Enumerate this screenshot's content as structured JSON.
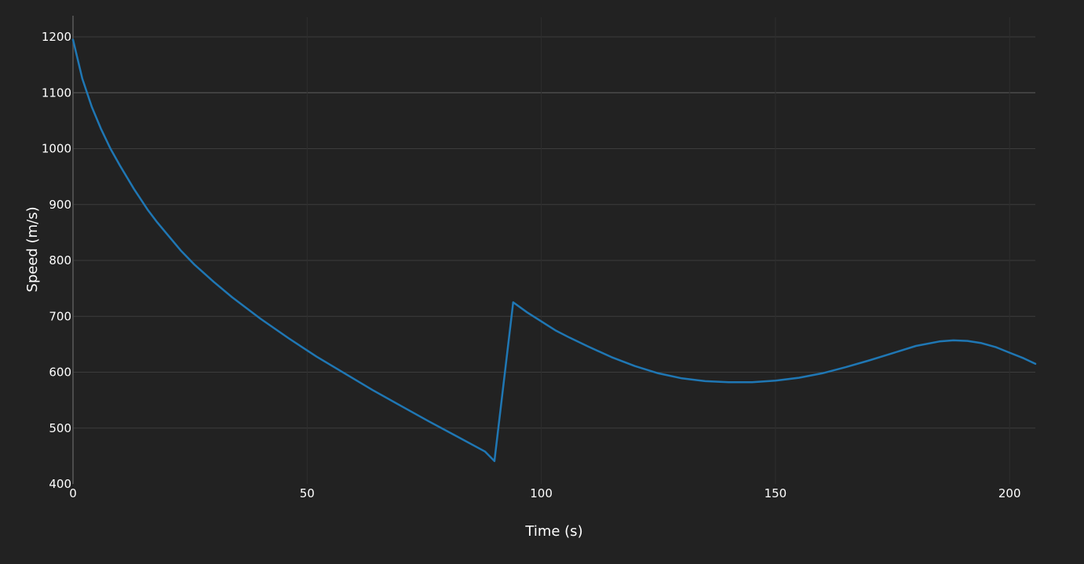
{
  "chart_data": {
    "type": "line",
    "title": "",
    "xlabel": "Time (s)",
    "ylabel": "Speed (m/s)",
    "xlim": [
      0,
      205.5
    ],
    "ylim": [
      400,
      1200
    ],
    "xticks": [
      0,
      50,
      100,
      150,
      200
    ],
    "xtick_labels": [
      "0",
      "50",
      "100",
      "150",
      "200"
    ],
    "yticks": [
      400,
      500,
      600,
      700,
      800,
      900,
      1000,
      1100,
      1200
    ],
    "ytick_labels": [
      "400",
      "500",
      "600",
      "700",
      "800",
      "900",
      "1000",
      "1100",
      "1200"
    ],
    "grid": true,
    "legend": "none",
    "colors": {
      "background": "#222222",
      "series": "#1f77b4",
      "grid": "#3c3c3c",
      "text": "#ffffff"
    },
    "series": [
      {
        "x": [
          0,
          2,
          4,
          6,
          8,
          10,
          13,
          16,
          18,
          20,
          23,
          26,
          30,
          34,
          40,
          46,
          52,
          58,
          64,
          70,
          76,
          82,
          88,
          90,
          94,
          97,
          100,
          103,
          106,
          110,
          115,
          120,
          125,
          130,
          135,
          140,
          145,
          150,
          155,
          160,
          165,
          170,
          175,
          180,
          185,
          188,
          191,
          194,
          197,
          200,
          203,
          205.5
        ],
        "y": [
          1195,
          1125,
          1075,
          1035,
          1000,
          970,
          928,
          890,
          868,
          848,
          818,
          792,
          762,
          734,
          696,
          661,
          628,
          598,
          568,
          540,
          512,
          485,
          458,
          441,
          725,
          707,
          691,
          675,
          662,
          646,
          627,
          611,
          598,
          589,
          584,
          582,
          582,
          585,
          590,
          598,
          609,
          621,
          634,
          647,
          655,
          657,
          656,
          652,
          645,
          635,
          625,
          615
        ]
      }
    ]
  }
}
